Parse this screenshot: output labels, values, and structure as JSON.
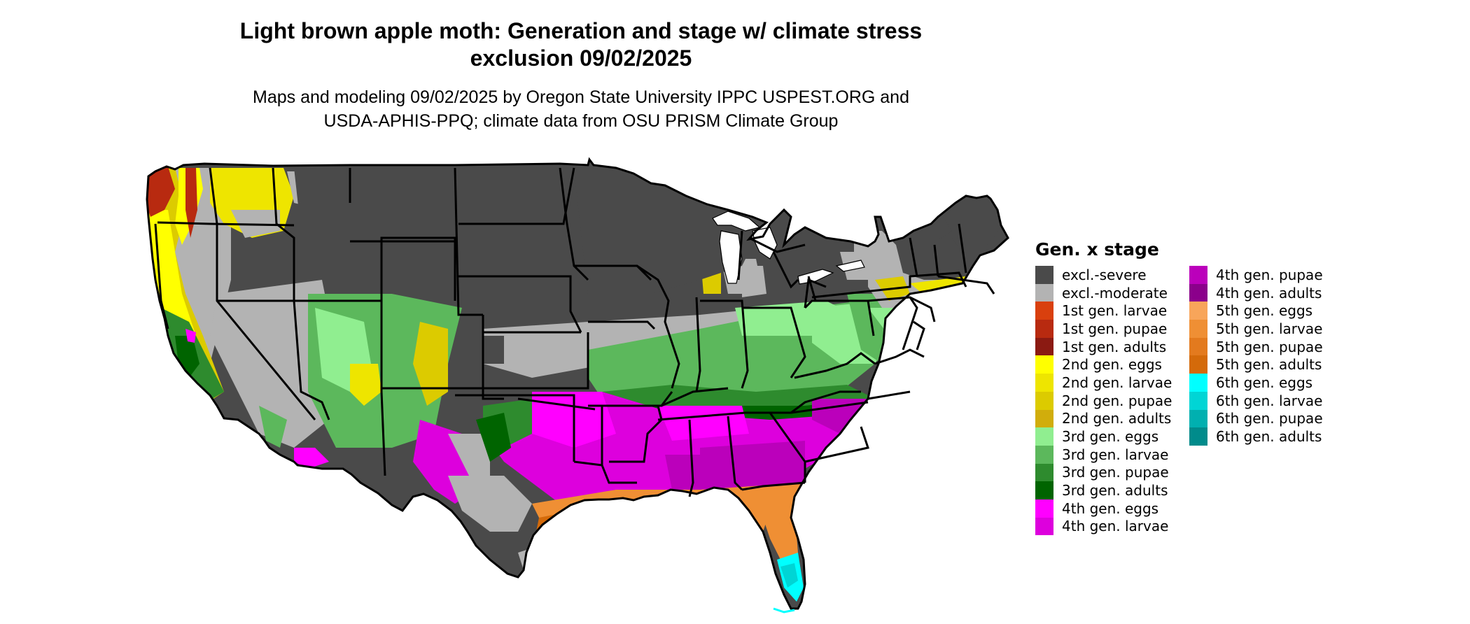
{
  "title_line1": "Light brown apple moth: Generation and stage w/ climate stress",
  "title_line2": "exclusion 09/02/2025",
  "subtitle_line1": "Maps and modeling 09/02/2025 by Oregon State University IPPC USPEST.ORG and",
  "subtitle_line2": "USDA-APHIS-PPQ; climate data from OSU PRISM Climate Group",
  "legend": {
    "title": "Gen. x stage",
    "col1": [
      {
        "label": "excl.-severe",
        "color": "#4a4a4a"
      },
      {
        "label": "excl.-moderate",
        "color": "#b3b3b3"
      },
      {
        "label": "1st gen. larvae",
        "color": "#d9400e"
      },
      {
        "label": "1st gen. pupae",
        "color": "#b82a10"
      },
      {
        "label": "1st gen. adults",
        "color": "#8b1a12"
      },
      {
        "label": "2nd gen. eggs",
        "color": "#ffff00"
      },
      {
        "label": "2nd gen. larvae",
        "color": "#eee500"
      },
      {
        "label": "2nd gen. pupae",
        "color": "#dccb00"
      },
      {
        "label": "2nd gen. adults",
        "color": "#d1ad0c"
      },
      {
        "label": "3rd gen. eggs",
        "color": "#90ee90"
      },
      {
        "label": "3rd gen. larvae",
        "color": "#5cb85c"
      },
      {
        "label": "3rd gen. pupae",
        "color": "#2e8b2e"
      },
      {
        "label": "3rd gen. adults",
        "color": "#006400"
      },
      {
        "label": "4th gen. eggs",
        "color": "#ff00ff"
      },
      {
        "label": "4th gen. larvae",
        "color": "#dd00dd"
      }
    ],
    "col2": [
      {
        "label": "4th gen. pupae",
        "color": "#bb00bb"
      },
      {
        "label": "4th gen. adults",
        "color": "#8b008b"
      },
      {
        "label": "5th gen. eggs",
        "color": "#f8a55a"
      },
      {
        "label": "5th gen. larvae",
        "color": "#ef8f34"
      },
      {
        "label": "5th gen. pupae",
        "color": "#e37a1e"
      },
      {
        "label": "5th gen. adults",
        "color": "#d46a0a"
      },
      {
        "label": "6th gen. eggs",
        "color": "#00ffff"
      },
      {
        "label": "6th gen. larvae",
        "color": "#00d5d5"
      },
      {
        "label": "6th gen. pupae",
        "color": "#00b0b0"
      },
      {
        "label": "6th gen. adults",
        "color": "#008b8b"
      }
    ]
  }
}
